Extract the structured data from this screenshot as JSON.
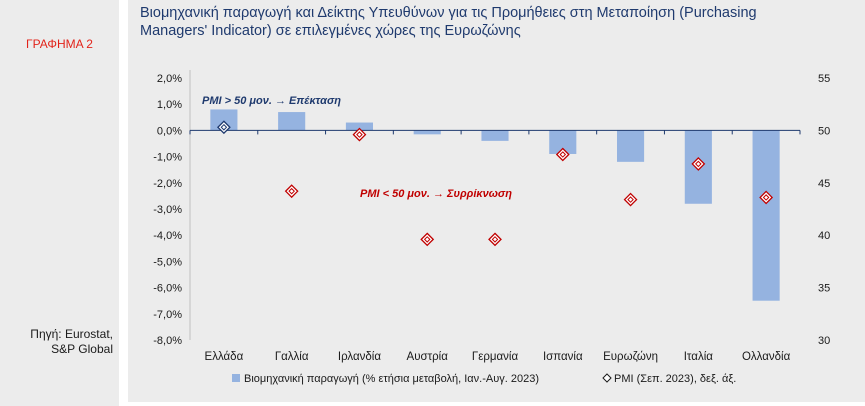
{
  "sidebar": {
    "figure_label": "ΓΡΑΦΗΜΑ 2",
    "source_line1": "Πηγή: Eurostat,",
    "source_line2": "S&P Global"
  },
  "chart_data": {
    "type": "bar",
    "title": "Βιομηχανική παραγωγή και Δείκτης Υπευθύνων για τις Προμήθειες στη Μεταποίηση (Purchasing Managers' Indicator) σε επιλεγμένες χώρες της Ευρωζώνης",
    "title_line1": "Βιομηχανική παραγωγή και Δείκτης Υπευθύνων για τις Προμήθειες στη Μεταποίηση (Purchasing",
    "title_line2": "Managers' Indicator) σε επιλεγμένες χώρες της Ευρωζώνης",
    "categories": [
      "Ελλάδα",
      "Γαλλία",
      "Ιρλανδία",
      "Αυστρία",
      "Γερμανία",
      "Ισπανία",
      "Ευρωζώνη",
      "Ιταλία",
      "Ολλανδία"
    ],
    "series": [
      {
        "name": "Βιομηχανική παραγωγή (% ετήσια μεταβολή, Ιαν.-Αυγ. 2023)",
        "type": "bar",
        "axis": "left",
        "color": "#95b3e0",
        "values": [
          0.8,
          0.7,
          0.3,
          -0.15,
          -0.4,
          -0.9,
          -1.2,
          -2.8,
          -6.5
        ]
      },
      {
        "name": "PMI (Σεπ. 2023), δεξ. άξ.",
        "type": "scatter",
        "axis": "right",
        "color": "#c00000",
        "marker": "diamond",
        "values": [
          50.3,
          44.2,
          49.6,
          39.6,
          39.6,
          47.7,
          43.4,
          46.8,
          43.6
        ]
      }
    ],
    "y_left": {
      "ylim": [
        -8,
        2
      ],
      "ticks": [
        2,
        1,
        0,
        -1,
        -2,
        -3,
        -4,
        -5,
        -6,
        -7,
        -8
      ],
      "tick_labels": [
        "2,0%",
        "1,0%",
        "0,0%",
        "-1,0%",
        "-2,0%",
        "-3,0%",
        "-4,0%",
        "-5,0%",
        "-6,0%",
        "-7,0%",
        "-8,0%"
      ]
    },
    "y_right": {
      "ylim": [
        30,
        55
      ],
      "ticks": [
        55,
        50,
        45,
        40,
        35,
        30
      ],
      "tick_labels": [
        "55",
        "50",
        "45",
        "40",
        "35",
        "30"
      ]
    },
    "annotations": {
      "expansion": "PMI > 50 μον. → Επέκταση",
      "contraction": "PMI < 50 μον. → Συρρίκνωση"
    },
    "legend_position": "bottom",
    "grid": false
  }
}
